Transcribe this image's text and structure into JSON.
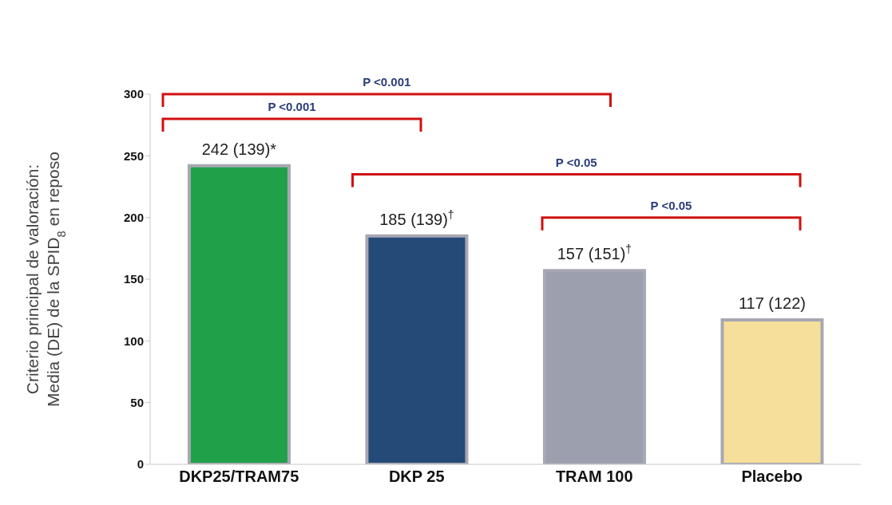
{
  "chart_data": {
    "type": "bar",
    "ylabel": "Criterio principal de valoración:\nMedia (DE) de la SPID$_{8}$ en reposo",
    "categories": [
      "DKP25/TRAM75",
      "DKP 25",
      "TRAM 100",
      "Placebo"
    ],
    "values": [
      242,
      185,
      157,
      117
    ],
    "colors": [
      "#21a04a",
      "#244a78",
      "#9c9fae",
      "#f5df9a"
    ],
    "value_labels": [
      "242 (139)*",
      "185 (139)$^{†}$",
      "157 (151)$^{†}$",
      "117 (122)"
    ],
    "ylim": [
      0,
      300
    ],
    "yticks": [
      0,
      50,
      100,
      150,
      200,
      250,
      300
    ],
    "annotations": [
      "P <0.001",
      "P <0.001",
      "P <0.05",
      "P <0.05"
    ],
    "grid": false
  }
}
